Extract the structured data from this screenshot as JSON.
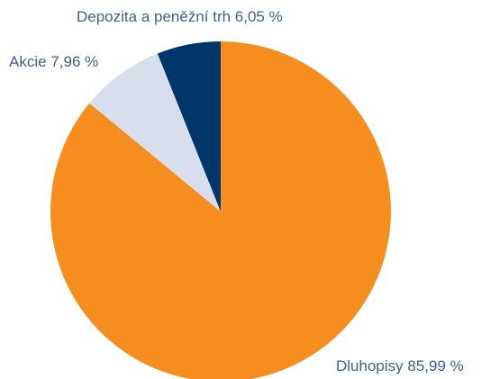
{
  "chart_data": {
    "type": "pie",
    "categories": [
      "Dluhopisy",
      "Akcie",
      "Depozita a peněžní trh"
    ],
    "values": [
      85.99,
      7.96,
      6.05
    ],
    "value_labels": [
      "85,99 %",
      "7,96 %",
      "6,05 %"
    ],
    "colors": [
      "#f68e1f",
      "#d8deeb",
      "#00366a"
    ]
  }
}
